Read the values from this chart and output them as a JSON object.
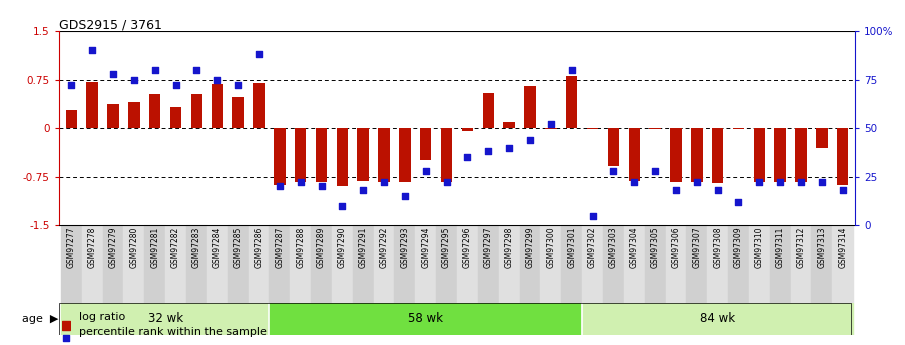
{
  "title": "GDS2915 / 3761",
  "samples": [
    "GSM97277",
    "GSM97278",
    "GSM97279",
    "GSM97280",
    "GSM97281",
    "GSM97282",
    "GSM97283",
    "GSM97284",
    "GSM97285",
    "GSM97286",
    "GSM97287",
    "GSM97288",
    "GSM97289",
    "GSM97290",
    "GSM97291",
    "GSM97292",
    "GSM97293",
    "GSM97294",
    "GSM97295",
    "GSM97296",
    "GSM97297",
    "GSM97298",
    "GSM97299",
    "GSM97300",
    "GSM97301",
    "GSM97302",
    "GSM97303",
    "GSM97304",
    "GSM97305",
    "GSM97306",
    "GSM97307",
    "GSM97308",
    "GSM97309",
    "GSM97310",
    "GSM97311",
    "GSM97312",
    "GSM97313",
    "GSM97314"
  ],
  "log_ratio": [
    0.28,
    0.72,
    0.38,
    0.4,
    0.52,
    0.32,
    0.52,
    0.68,
    0.48,
    0.7,
    -0.88,
    -0.83,
    -0.84,
    -0.9,
    -0.82,
    -0.83,
    -0.84,
    -0.5,
    -0.83,
    -0.05,
    0.55,
    0.1,
    0.65,
    -0.02,
    0.8,
    -0.02,
    -0.58,
    -0.82,
    -0.02,
    -0.83,
    -0.83,
    -0.85,
    -0.02,
    -0.83,
    -0.83,
    -0.83,
    -0.3,
    -0.88
  ],
  "percentile": [
    72,
    90,
    78,
    75,
    80,
    72,
    80,
    75,
    72,
    88,
    20,
    22,
    20,
    10,
    18,
    22,
    15,
    28,
    22,
    35,
    38,
    40,
    44,
    52,
    80,
    5,
    28,
    22,
    28,
    18,
    22,
    18,
    12,
    22,
    22,
    22,
    22,
    18
  ],
  "groups": [
    {
      "label": "32 wk",
      "start": 0,
      "end": 9
    },
    {
      "label": "58 wk",
      "start": 10,
      "end": 24
    },
    {
      "label": "84 wk",
      "start": 25,
      "end": 37
    }
  ],
  "group_colors": [
    "#d0f0b0",
    "#70e040",
    "#d0f0b0"
  ],
  "bar_color": "#bb1100",
  "dot_color": "#1515cc",
  "ylim": [
    -1.5,
    1.5
  ],
  "ytick_vals": [
    -1.5,
    -0.75,
    0.0,
    0.75,
    1.5
  ],
  "ytick_labels": [
    "-1.5",
    "-0.75",
    "0",
    "0.75",
    "1.5"
  ],
  "right_ytick_pcts": [
    0,
    25,
    50,
    75,
    100
  ],
  "right_ytick_labels": [
    "0",
    "25",
    "50",
    "75",
    "100%"
  ],
  "age_label": "age",
  "legend_log_ratio": "log ratio",
  "legend_percentile": "percentile rank within the sample",
  "title_fontsize": 9,
  "tick_fontsize": 7.5,
  "sample_label_fontsize": 5.5,
  "group_label_fontsize": 8.5,
  "legend_fontsize": 8,
  "bar_width": 0.55,
  "dot_size": 22,
  "background_color": "#ffffff",
  "xticklabel_bg_even": "#d0d0d0",
  "xticklabel_bg_odd": "#e0e0e0"
}
